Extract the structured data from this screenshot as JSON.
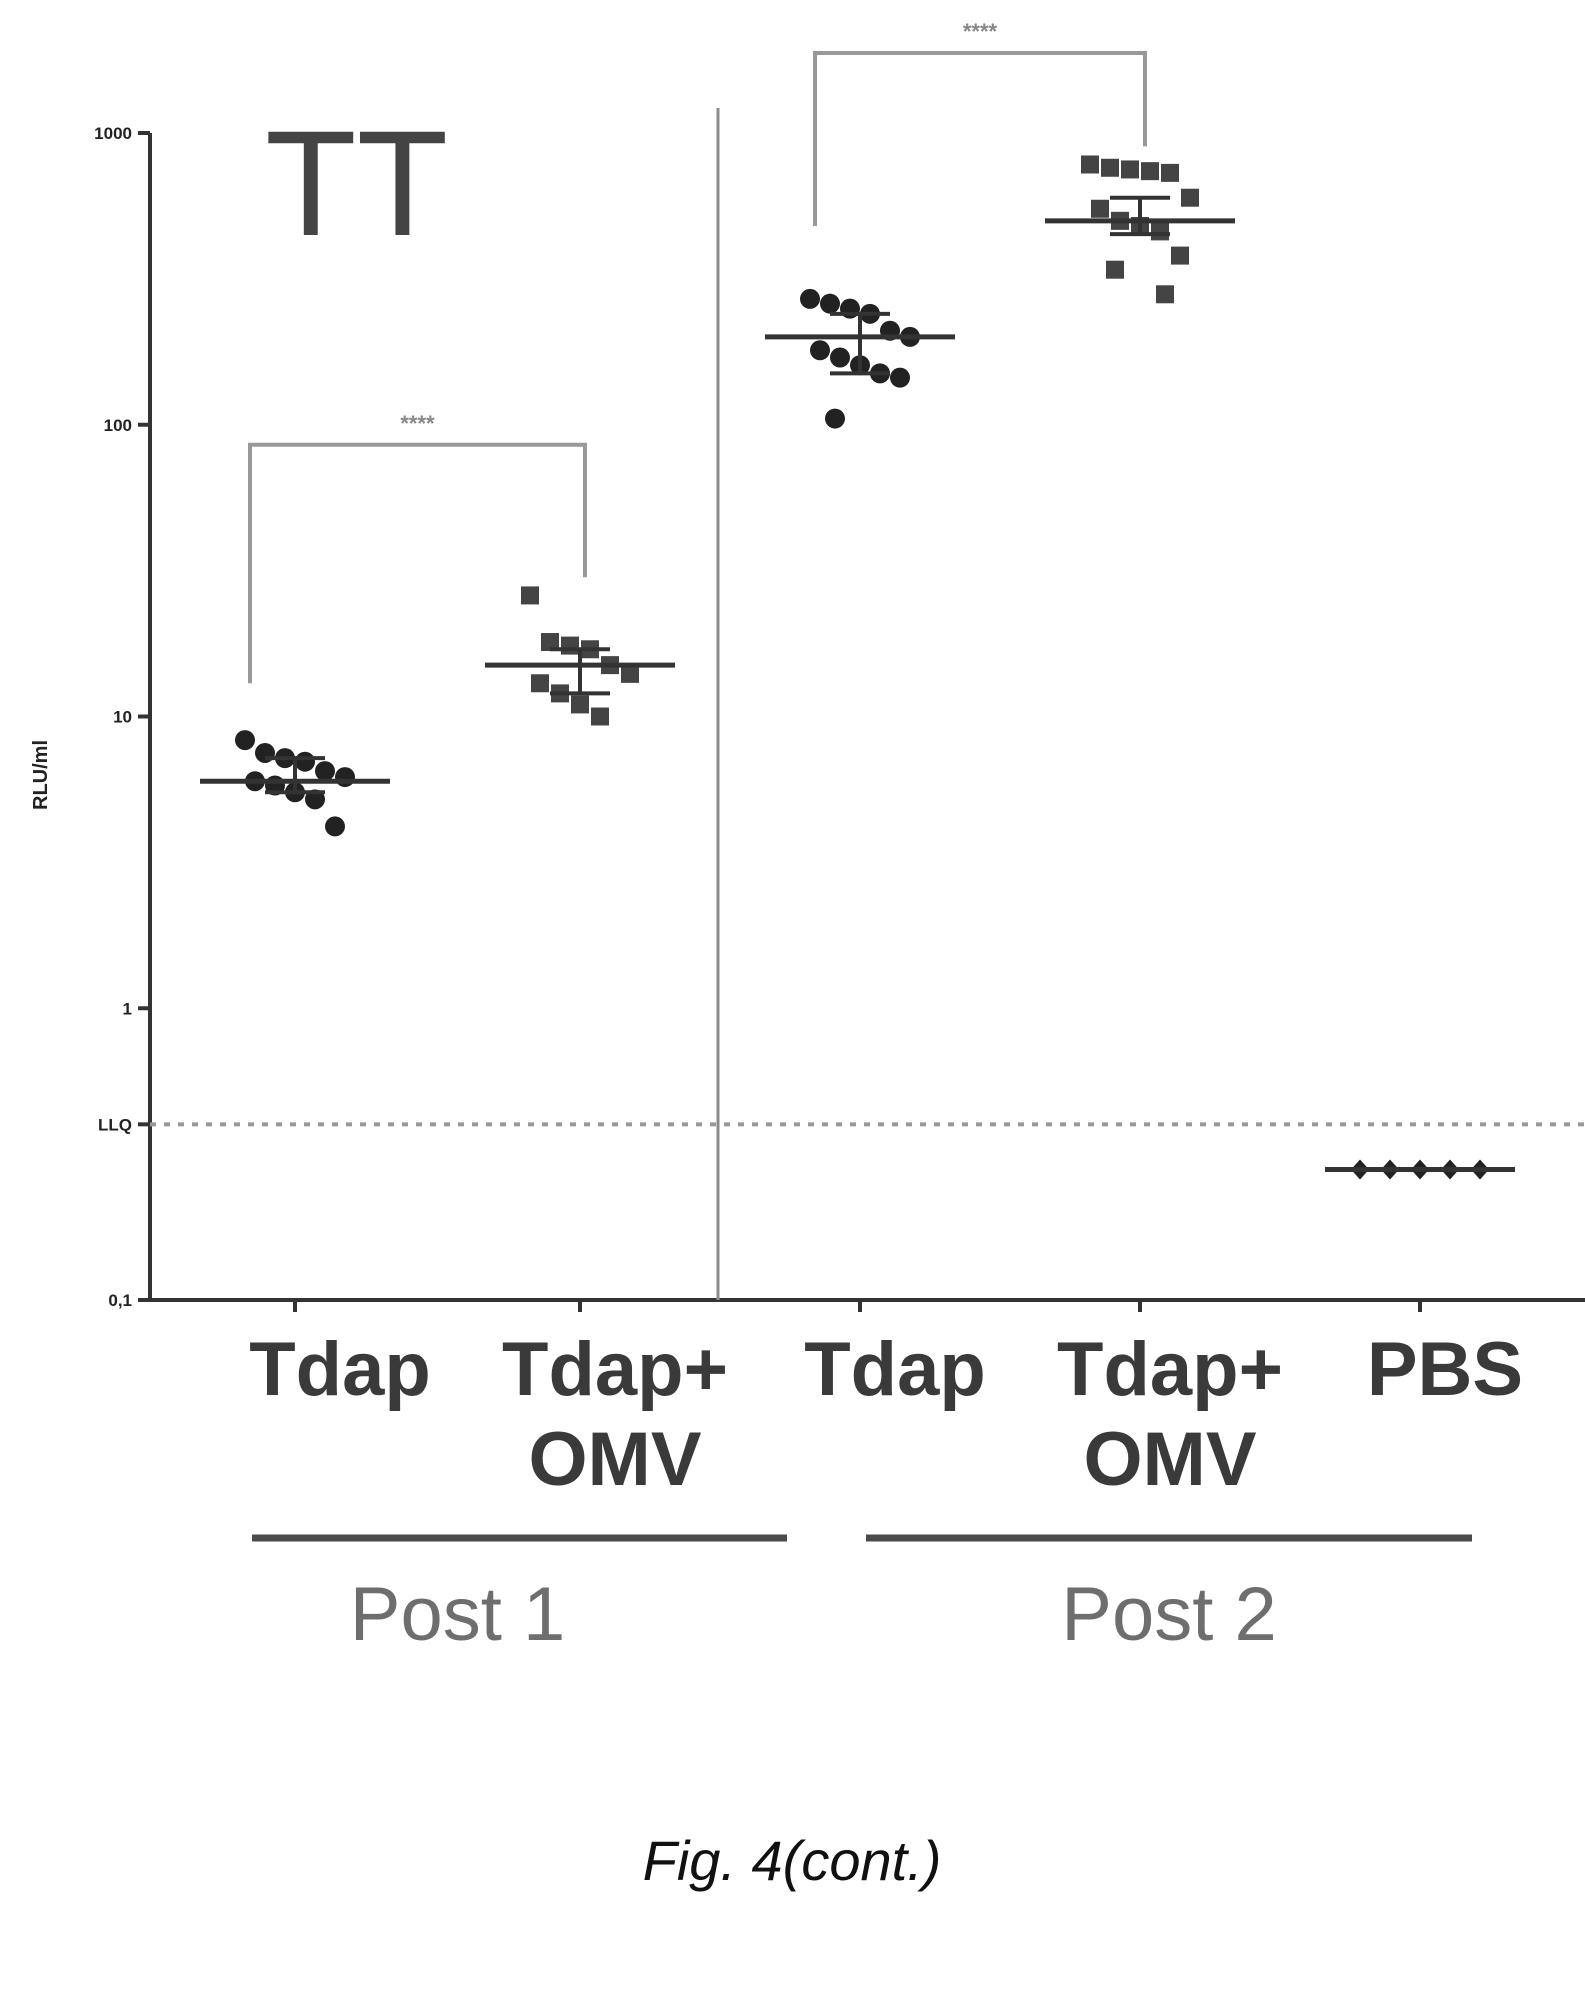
{
  "chart_data": {
    "type": "scatter",
    "panel_label": "TT",
    "ylabel": "RLU/ml",
    "yscale": "log",
    "ylim": [
      0.1,
      1000
    ],
    "yticks": [
      {
        "value": 1000,
        "label": "1000"
      },
      {
        "value": 100,
        "label": "100"
      },
      {
        "value": 10,
        "label": "10"
      },
      {
        "value": 1,
        "label": "1"
      },
      {
        "value": 0.4,
        "label": "LLQ"
      },
      {
        "value": 0.1,
        "label": "0,1"
      }
    ],
    "llq": 0.4,
    "categories": [
      {
        "lines": [
          "Tdap"
        ],
        "group": 0
      },
      {
        "lines": [
          "Tdap+",
          "OMV"
        ],
        "group": 0
      },
      {
        "lines": [
          "Tdap"
        ],
        "group": 1
      },
      {
        "lines": [
          "Tdap+",
          "OMV"
        ],
        "group": 1
      },
      {
        "lines": [
          "PBS"
        ],
        "group": 1
      }
    ],
    "groups": [
      "Post 1",
      "Post 2"
    ],
    "series": [
      {
        "marker": "circle",
        "median": 6,
        "iqr": [
          5.5,
          7.2
        ],
        "values": [
          8.3,
          7.5,
          7.2,
          7.0,
          6.5,
          6.2,
          6.0,
          5.8,
          5.5,
          5.2,
          4.2
        ]
      },
      {
        "marker": "square",
        "median": 15,
        "iqr": [
          12,
          17
        ],
        "values": [
          26,
          18,
          17.5,
          17,
          15,
          14,
          13,
          12,
          11,
          10
        ]
      },
      {
        "marker": "circle",
        "median": 200,
        "iqr": [
          150,
          240
        ],
        "values": [
          270,
          260,
          250,
          240,
          210,
          200,
          180,
          170,
          160,
          150,
          145,
          105
        ]
      },
      {
        "marker": "square",
        "median": 500,
        "iqr": [
          450,
          600
        ],
        "values": [
          780,
          760,
          750,
          740,
          730,
          600,
          550,
          500,
          480,
          460,
          380,
          340,
          280
        ]
      },
      {
        "marker": "diamond",
        "median": 0.28,
        "iqr": [
          0.28,
          0.28
        ],
        "values": [
          0.28,
          0.28,
          0.28,
          0.28,
          0.28
        ]
      }
    ],
    "comparisons": [
      {
        "from": 0,
        "to": 1,
        "label": "****"
      },
      {
        "from": 2,
        "to": 3,
        "label": "****"
      }
    ]
  },
  "caption": "Fig. 4(cont.)"
}
